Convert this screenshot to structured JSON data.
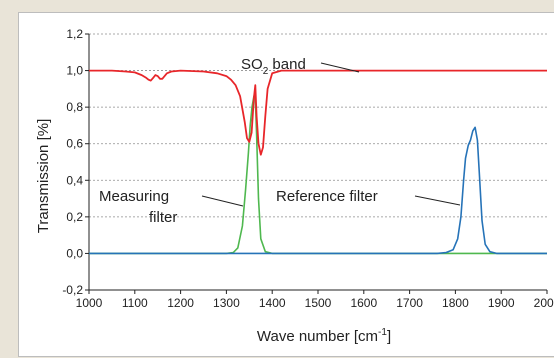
{
  "chart_data": {
    "type": "line",
    "xlabel": "Wave number [cm",
    "xlabel_sup": "-1",
    "xlabel_suffix": "]",
    "ylabel": "Transmission [%]",
    "xlim": [
      1000,
      2000
    ],
    "ylim": [
      -0.2,
      1.2
    ],
    "x_ticks": [
      1000,
      1100,
      1200,
      1300,
      1400,
      1500,
      1600,
      1700,
      1800,
      1900,
      2000
    ],
    "y_ticks": [
      -0.2,
      0.0,
      0.2,
      0.4,
      0.6,
      0.8,
      1.0,
      1.2
    ],
    "x_tick_labels": [
      "1000",
      "1100",
      "1200",
      "1300",
      "1400",
      "1500",
      "1600",
      "1700",
      "1800",
      "1900",
      "2000"
    ],
    "y_tick_labels": [
      "-0,2",
      "0,0",
      "0,2",
      "0,4",
      "0,6",
      "0,8",
      "1,0",
      "1,2"
    ],
    "grid": "horizontal dashed",
    "series": [
      {
        "color": "#e8262a",
        "x": [
          1000,
          1050,
          1080,
          1100,
          1115,
          1125,
          1130,
          1135,
          1140,
          1145,
          1150,
          1155,
          1160,
          1165,
          1170,
          1180,
          1200,
          1250,
          1280,
          1300,
          1310,
          1320,
          1330,
          1340,
          1345,
          1350,
          1355,
          1360,
          1363,
          1366,
          1370,
          1375,
          1380,
          1385,
          1390,
          1400,
          1420,
          1450,
          1500,
          1600,
          1700,
          1800,
          1900,
          2000
        ],
        "y": [
          1.0,
          1.0,
          0.995,
          0.99,
          0.975,
          0.96,
          0.95,
          0.945,
          0.96,
          0.975,
          0.97,
          0.955,
          0.955,
          0.97,
          0.985,
          0.995,
          1.0,
          0.995,
          0.985,
          0.97,
          0.95,
          0.92,
          0.86,
          0.72,
          0.63,
          0.61,
          0.66,
          0.85,
          0.92,
          0.75,
          0.6,
          0.54,
          0.58,
          0.75,
          0.9,
          0.985,
          1.0,
          1.0,
          1.0,
          1.0,
          1.0,
          1.0,
          1.0,
          1.0
        ]
      },
      {
        "color": "#4fb84f",
        "x": [
          1000,
          1300,
          1315,
          1325,
          1335,
          1342,
          1348,
          1352,
          1356,
          1360,
          1363,
          1366,
          1370,
          1375,
          1385,
          1400,
          2000
        ],
        "y": [
          0.0,
          0.0,
          0.005,
          0.03,
          0.15,
          0.35,
          0.55,
          0.7,
          0.8,
          0.86,
          0.85,
          0.65,
          0.3,
          0.08,
          0.01,
          0.0,
          0.0
        ]
      },
      {
        "color": "#2673b8",
        "x": [
          1000,
          1760,
          1780,
          1795,
          1805,
          1812,
          1818,
          1822,
          1828,
          1833,
          1838,
          1843,
          1848,
          1852,
          1858,
          1865,
          1875,
          1890,
          2000
        ],
        "y": [
          0.0,
          0.0,
          0.005,
          0.02,
          0.08,
          0.2,
          0.4,
          0.52,
          0.59,
          0.62,
          0.67,
          0.69,
          0.62,
          0.45,
          0.18,
          0.05,
          0.01,
          0.0,
          0.0
        ]
      }
    ],
    "annotations": [
      {
        "text": "SO",
        "sub": "2",
        "suffix": " band"
      },
      {
        "text": "Measuring"
      },
      {
        "text": "filter"
      },
      {
        "text": "Reference filter"
      }
    ],
    "colors": {
      "so2": "#e8262a",
      "measuring": "#4fb84f",
      "reference": "#2673b8"
    }
  }
}
